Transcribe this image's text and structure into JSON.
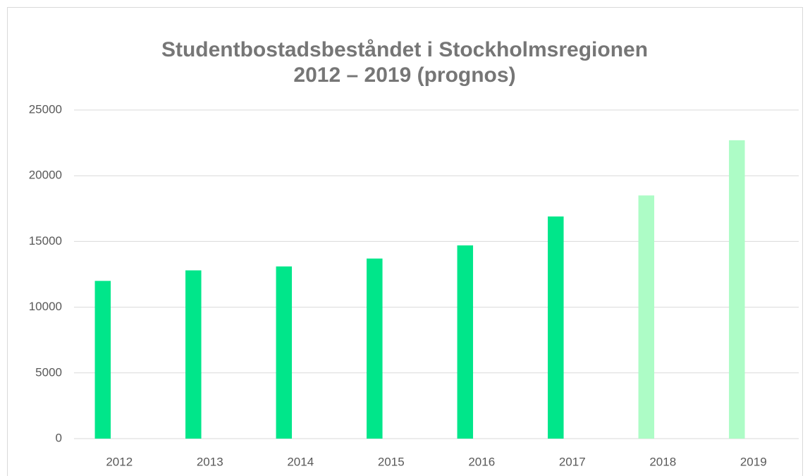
{
  "chart_data": {
    "type": "bar",
    "title": [
      "Studentbostadsbeståndet i Stockholmsregionen",
      "2012 – 2019 (prognos)"
    ],
    "categories": [
      "2012",
      "2013",
      "2014",
      "2015",
      "2016",
      "2017",
      "2018",
      "2019"
    ],
    "values": [
      12000,
      12800,
      13100,
      13700,
      14700,
      16900,
      18500,
      22700
    ],
    "colors": [
      "#00e68a",
      "#00e68a",
      "#00e68a",
      "#00e68a",
      "#00e68a",
      "#00e68a",
      "#adfcc6",
      "#adfcc6"
    ],
    "ylim": [
      0,
      25000
    ],
    "yticks": [
      0,
      5000,
      10000,
      15000,
      20000,
      25000
    ],
    "grid": true
  }
}
